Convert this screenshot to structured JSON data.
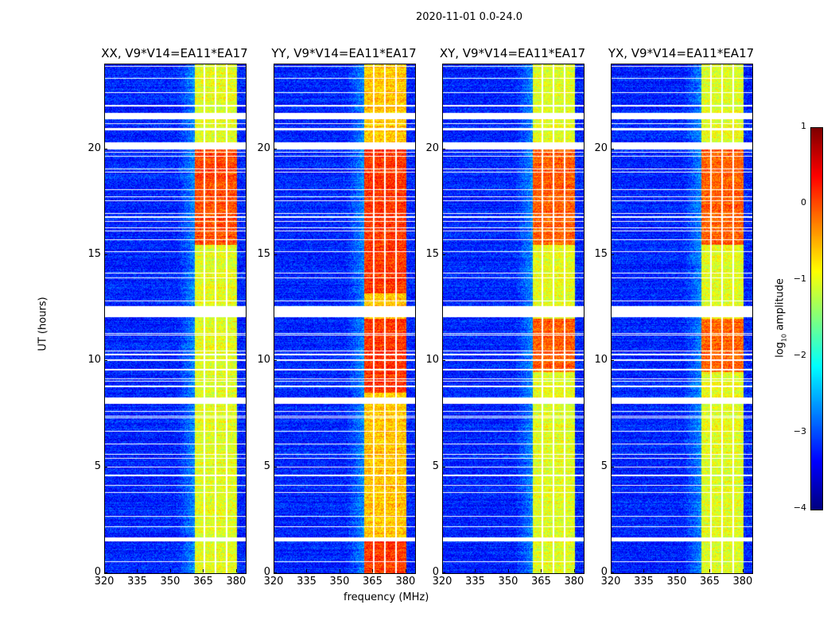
{
  "chart_data": {
    "type": "heatmap",
    "suptitle": "2020-11-01 0.0-24.0",
    "xlabel": "frequency (MHz)",
    "ylabel": "UT (hours)",
    "xlim": [
      320,
      384
    ],
    "ylim": [
      0,
      24
    ],
    "xticks": [
      320,
      335,
      350,
      365,
      380
    ],
    "yticks": [
      0,
      5,
      10,
      15,
      20
    ],
    "colormap": "jet",
    "colorbar": {
      "label_prefix": "log",
      "label_sub": "10",
      "label_suffix": " amplitude",
      "range": [
        -4,
        1
      ],
      "ticks": [
        1,
        0,
        -1,
        -2,
        -3,
        -4
      ],
      "tick_labels": [
        "1",
        "0",
        "−1",
        "−2",
        "−3",
        "−4"
      ]
    },
    "panels": [
      {
        "title": "XX, V9*V14=EA11*EA17",
        "background_level": -3.2,
        "band_level": -1.0,
        "strong_hours": [
          [
            15.5,
            20.0
          ]
        ],
        "strong_level": 0.0
      },
      {
        "title": "YY, V9*V14=EA11*EA17",
        "background_level": -3.2,
        "band_level": -0.6,
        "strong_hours": [
          [
            8.5,
            12.0
          ],
          [
            13.2,
            20.0
          ],
          [
            0.0,
            1.5
          ]
        ],
        "strong_level": 0.1
      },
      {
        "title": "XY, V9*V14=EA11*EA17",
        "background_level": -3.2,
        "band_level": -1.0,
        "strong_hours": [
          [
            15.5,
            20.0
          ],
          [
            9.5,
            12.0
          ]
        ],
        "strong_level": -0.1
      },
      {
        "title": "YX, V9*V14=EA11*EA17",
        "background_level": -3.2,
        "band_level": -1.0,
        "strong_hours": [
          [
            15.5,
            20.0
          ],
          [
            9.5,
            12.0
          ]
        ],
        "strong_level": -0.1
      }
    ],
    "band_mhz": [
      360.7,
      380.0
    ],
    "subband_edges_mhz": [
      365.3,
      370.3,
      375.4
    ],
    "flagged_hours": [
      [
        1.5,
        1.7
      ],
      [
        8.0,
        8.3
      ],
      [
        12.1,
        12.6
      ],
      [
        20.0,
        20.3
      ],
      [
        21.4,
        21.7
      ]
    ]
  }
}
